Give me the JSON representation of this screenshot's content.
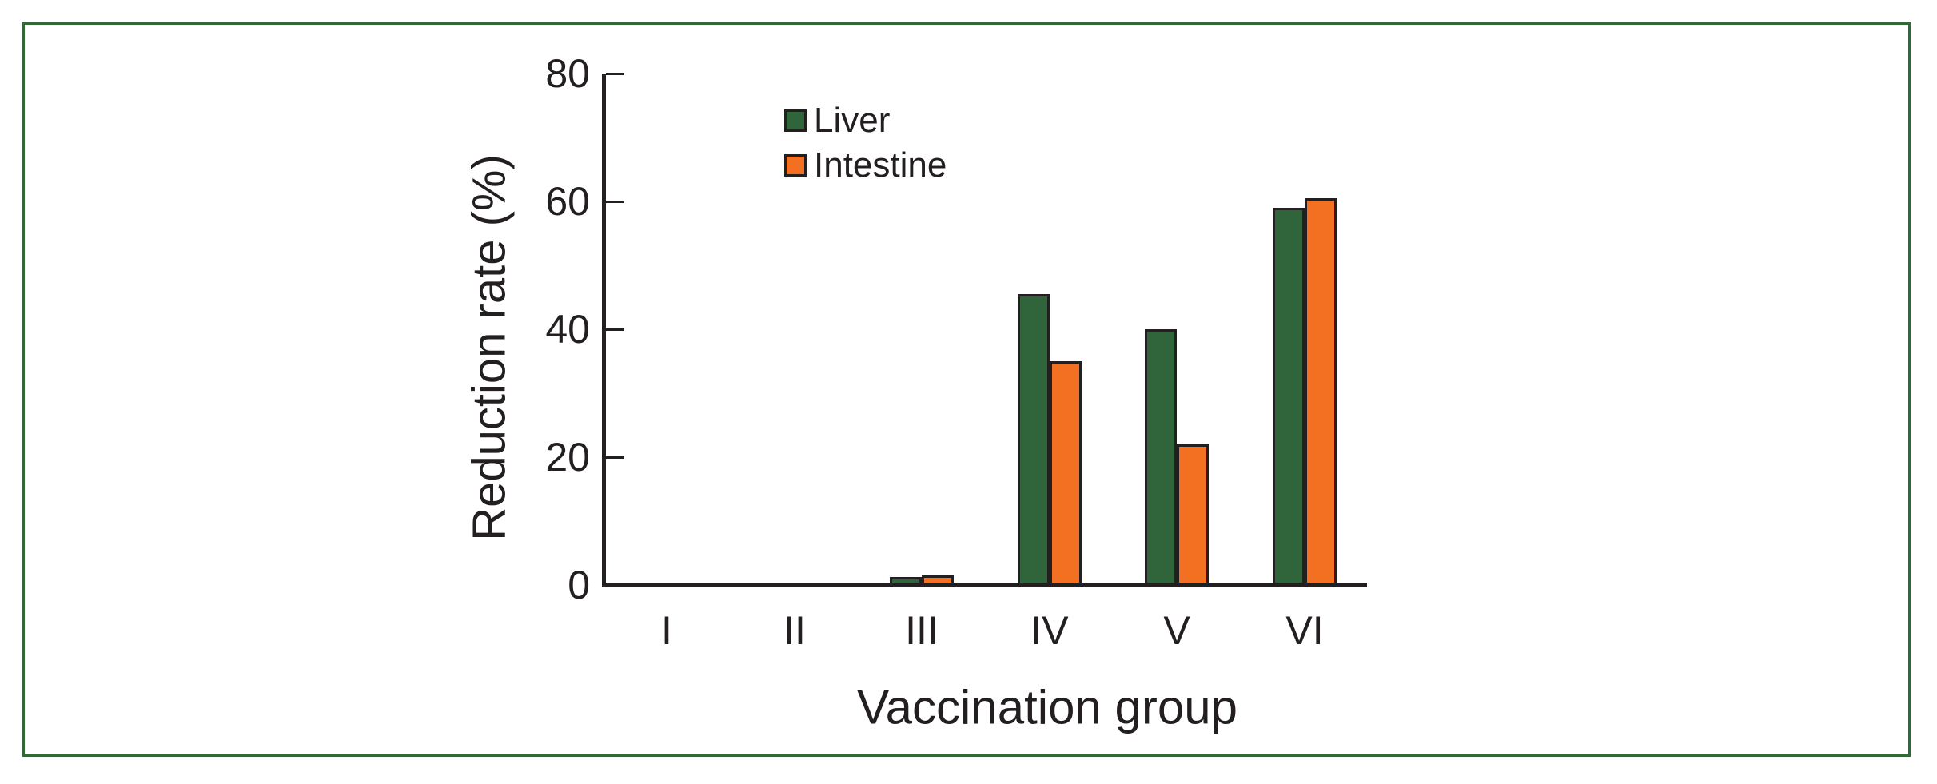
{
  "figure": {
    "background": "#FFFFFF",
    "border_color": "#2E6B36"
  },
  "chart_data": {
    "type": "bar",
    "title": "",
    "xlabel": "Vaccination group",
    "ylabel": "Reduction rate (%)",
    "categories": [
      "I",
      "II",
      "III",
      "IV",
      "V",
      "VI"
    ],
    "series": [
      {
        "name": "Liver",
        "color": "#30653B",
        "values": [
          0.3,
          0.4,
          1.2,
          45.5,
          40.0,
          59.0
        ]
      },
      {
        "name": "Intestine",
        "color": "#F36F21",
        "values": [
          0.3,
          0.4,
          1.5,
          35.0,
          22.0,
          60.5
        ]
      }
    ],
    "ylim": [
      0,
      80
    ],
    "yticks": [
      0,
      20,
      40,
      60,
      80
    ],
    "ytick_labels": [
      "0",
      "20",
      "40",
      "60",
      "80"
    ],
    "grid": false,
    "legend_position": "upper-left-inside",
    "bar_outline_color": "#231F20",
    "axis_color": "#231F20"
  }
}
